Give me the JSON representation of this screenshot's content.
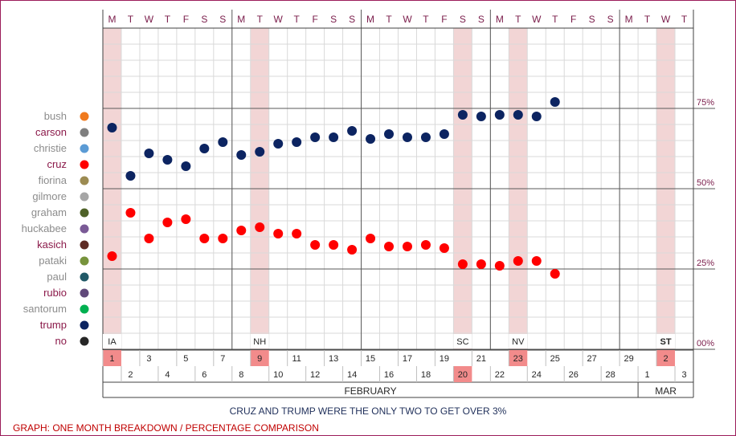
{
  "chart_data": {
    "type": "scatter",
    "day_header": [
      "M",
      "T",
      "W",
      "T",
      "F",
      "S",
      "S",
      "M",
      "T",
      "W",
      "T",
      "F",
      "S",
      "S",
      "M",
      "T",
      "W",
      "T",
      "F",
      "S",
      "S",
      "M",
      "T",
      "W",
      "T",
      "F",
      "S",
      "S",
      "M",
      "T",
      "W",
      "T"
    ],
    "dates": [
      "1",
      "2",
      "3",
      "4",
      "5",
      "6",
      "7",
      "8",
      "9",
      "10",
      "11",
      "12",
      "13",
      "14",
      "15",
      "16",
      "17",
      "18",
      "19",
      "20",
      "21",
      "22",
      "23",
      "24",
      "25",
      "26",
      "27",
      "28",
      "29",
      "1",
      "2",
      "3"
    ],
    "highlight_days": [
      1,
      9,
      20,
      23,
      31
    ],
    "event_labels": [
      {
        "day": 1,
        "label": "IA"
      },
      {
        "day": 9,
        "label": "NH"
      },
      {
        "day": 20,
        "label": "SC"
      },
      {
        "day": 23,
        "label": "NV"
      },
      {
        "day": 31,
        "label": "ST"
      }
    ],
    "months": [
      {
        "label": "FEBRUARY",
        "start_day": 1,
        "end_day": 29
      },
      {
        "label": "MAR",
        "start_day": 30,
        "end_day": 32
      }
    ],
    "y_axis": {
      "ylim": [
        0,
        100
      ],
      "ticks": [
        {
          "value": 0,
          "label": "00%"
        },
        {
          "value": 25,
          "label": "25%"
        },
        {
          "value": 50,
          "label": "50%"
        },
        {
          "value": 75,
          "label": "75%"
        }
      ]
    },
    "legend": {
      "placement": "left",
      "items": [
        {
          "name": "bush",
          "color": "#f07a1e",
          "active": false
        },
        {
          "name": "carson",
          "color": "#7f7f7f",
          "active": true
        },
        {
          "name": "christie",
          "color": "#5b9bd5",
          "active": false
        },
        {
          "name": "cruz",
          "color": "#ff0000",
          "active": true
        },
        {
          "name": "fiorina",
          "color": "#9c8b52",
          "active": false
        },
        {
          "name": "gilmore",
          "color": "#a6a6a6",
          "active": false
        },
        {
          "name": "graham",
          "color": "#4f6228",
          "active": false
        },
        {
          "name": "huckabee",
          "color": "#7a5a96",
          "active": false
        },
        {
          "name": "kasich",
          "color": "#5e2b24",
          "active": true
        },
        {
          "name": "pataki",
          "color": "#77933c",
          "active": false
        },
        {
          "name": "paul",
          "color": "#215967",
          "active": false
        },
        {
          "name": "rubio",
          "color": "#60497a",
          "active": true
        },
        {
          "name": "santorum",
          "color": "#00b050",
          "active": false
        },
        {
          "name": "trump",
          "color": "#0c2461",
          "active": true
        },
        {
          "name": "no",
          "color": "#262626",
          "active": true
        }
      ]
    },
    "series": [
      {
        "name": "trump",
        "color": "#0c2461",
        "points": [
          {
            "day": 1,
            "value": 69
          },
          {
            "day": 2,
            "value": 54
          },
          {
            "day": 3,
            "value": 61
          },
          {
            "day": 4,
            "value": 59
          },
          {
            "day": 5,
            "value": 57
          },
          {
            "day": 6,
            "value": 62.5
          },
          {
            "day": 7,
            "value": 64.5
          },
          {
            "day": 8,
            "value": 60.5
          },
          {
            "day": 9,
            "value": 61.5
          },
          {
            "day": 10,
            "value": 64
          },
          {
            "day": 11,
            "value": 64.5
          },
          {
            "day": 12,
            "value": 66
          },
          {
            "day": 13,
            "value": 66
          },
          {
            "day": 14,
            "value": 68
          },
          {
            "day": 15,
            "value": 65.5
          },
          {
            "day": 16,
            "value": 67
          },
          {
            "day": 17,
            "value": 66
          },
          {
            "day": 18,
            "value": 66
          },
          {
            "day": 19,
            "value": 67
          },
          {
            "day": 20,
            "value": 73
          },
          {
            "day": 21,
            "value": 72.5
          },
          {
            "day": 22,
            "value": 73
          },
          {
            "day": 23,
            "value": 73
          },
          {
            "day": 24,
            "value": 72.5
          },
          {
            "day": 25,
            "value": 77
          }
        ]
      },
      {
        "name": "cruz",
        "color": "#ff0000",
        "points": [
          {
            "day": 1,
            "value": 29
          },
          {
            "day": 2,
            "value": 42.5
          },
          {
            "day": 3,
            "value": 34.5
          },
          {
            "day": 4,
            "value": 39.5
          },
          {
            "day": 5,
            "value": 40.5
          },
          {
            "day": 6,
            "value": 34.5
          },
          {
            "day": 7,
            "value": 34.5
          },
          {
            "day": 8,
            "value": 37
          },
          {
            "day": 9,
            "value": 38
          },
          {
            "day": 10,
            "value": 36
          },
          {
            "day": 11,
            "value": 36
          },
          {
            "day": 12,
            "value": 32.5
          },
          {
            "day": 13,
            "value": 32.5
          },
          {
            "day": 14,
            "value": 31
          },
          {
            "day": 15,
            "value": 34.5
          },
          {
            "day": 16,
            "value": 32
          },
          {
            "day": 17,
            "value": 32
          },
          {
            "day": 18,
            "value": 32.5
          },
          {
            "day": 19,
            "value": 31.5
          },
          {
            "day": 20,
            "value": 26.5
          },
          {
            "day": 21,
            "value": 26.5
          },
          {
            "day": 22,
            "value": 26
          },
          {
            "day": 23,
            "value": 27.5
          },
          {
            "day": 24,
            "value": 27.5
          },
          {
            "day": 25,
            "value": 23.5
          }
        ]
      }
    ]
  },
  "caption": "CRUZ AND TRUMP WERE THE ONLY TWO TO GET OVER 3%",
  "footnote": "GRAPH: ONE MONTH BREAKDOWN / PERCENTAGE COMPARISON"
}
